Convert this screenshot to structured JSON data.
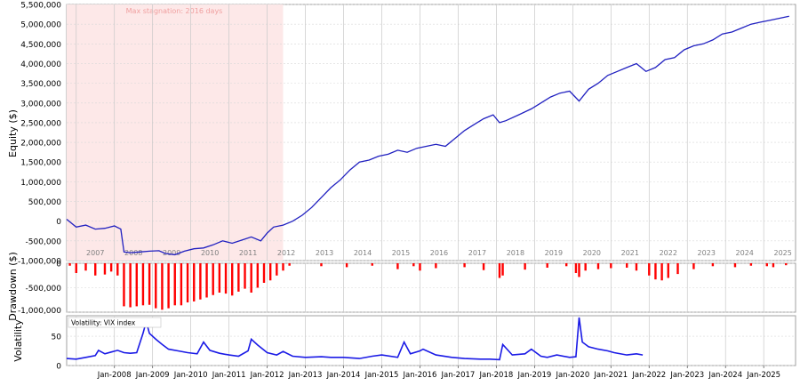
{
  "chart_data": [
    {
      "type": "line",
      "ylabel": "Equity ($)",
      "ylim": [
        -1000000,
        5500000
      ],
      "y_ticks": [
        "5,500,000",
        "5,000,000",
        "4,500,000",
        "4,000,000",
        "3,500,000",
        "3,000,000",
        "2,500,000",
        "2,000,000",
        "1,500,000",
        "1,000,000",
        "500,000",
        "0",
        "-500,000",
        "-1,000,000"
      ],
      "y_tick_values": [
        5500000,
        5000000,
        4500000,
        4000000,
        3500000,
        3000000,
        2500000,
        2000000,
        1500000,
        1000000,
        500000,
        0,
        -500000,
        -1000000
      ],
      "year_labels": [
        "2007",
        "2008",
        "2009",
        "2010",
        "2011",
        "2012",
        "2013",
        "2014",
        "2015",
        "2016",
        "2017",
        "2018",
        "2019",
        "2020",
        "2021",
        "2022",
        "2023",
        "2024",
        "2025"
      ],
      "annotation": "Max stagnation: 2016 days",
      "stagnation_span": [
        "2006-10",
        "2012-06"
      ],
      "grid": true,
      "line_color": "#2020c0",
      "shade_color": "#fde8e8",
      "x": [
        "2006-10",
        "2007-01",
        "2007-04",
        "2007-07",
        "2007-10",
        "2008-01",
        "2008-03",
        "2008-04",
        "2008-06",
        "2008-09",
        "2008-12",
        "2009-03",
        "2009-05",
        "2009-08",
        "2009-11",
        "2010-02",
        "2010-05",
        "2010-08",
        "2010-11",
        "2011-02",
        "2011-05",
        "2011-08",
        "2011-11",
        "2012-01",
        "2012-03",
        "2012-06",
        "2012-09",
        "2012-12",
        "2013-03",
        "2013-06",
        "2013-09",
        "2013-12",
        "2014-03",
        "2014-06",
        "2014-09",
        "2014-12",
        "2015-03",
        "2015-06",
        "2015-09",
        "2015-12",
        "2016-03",
        "2016-06",
        "2016-09",
        "2016-12",
        "2017-03",
        "2017-06",
        "2017-09",
        "2017-12",
        "2018-02",
        "2018-04",
        "2018-08",
        "2018-12",
        "2019-03",
        "2019-06",
        "2019-09",
        "2019-12",
        "2020-03",
        "2020-06",
        "2020-09",
        "2020-12",
        "2021-03",
        "2021-06",
        "2021-09",
        "2021-12",
        "2022-03",
        "2022-06",
        "2022-09",
        "2022-12",
        "2023-03",
        "2023-06",
        "2023-09",
        "2023-12",
        "2024-03",
        "2024-06",
        "2024-09",
        "2024-12",
        "2025-03",
        "2025-06",
        "2025-09"
      ],
      "values": [
        50000,
        -150000,
        -100000,
        -200000,
        -180000,
        -120000,
        -200000,
        -780000,
        -800000,
        -780000,
        -760000,
        -750000,
        -820000,
        -850000,
        -760000,
        -700000,
        -680000,
        -600000,
        -500000,
        -560000,
        -480000,
        -400000,
        -500000,
        -300000,
        -150000,
        -100000,
        0,
        150000,
        350000,
        600000,
        850000,
        1050000,
        1300000,
        1500000,
        1550000,
        1650000,
        1700000,
        1800000,
        1750000,
        1850000,
        1900000,
        1950000,
        1900000,
        2100000,
        2300000,
        2450000,
        2600000,
        2700000,
        2500000,
        2550000,
        2700000,
        2850000,
        3000000,
        3150000,
        3250000,
        3300000,
        3050000,
        3350000,
        3500000,
        3700000,
        3800000,
        3900000,
        4000000,
        3800000,
        3900000,
        4100000,
        4150000,
        4350000,
        4450000,
        4500000,
        4600000,
        4750000,
        4800000,
        4900000,
        5000000,
        5050000,
        5100000,
        5150000,
        5200000
      ]
    },
    {
      "type": "bar",
      "ylabel": "Drawdown ($)",
      "ylim": [
        -1000000,
        0
      ],
      "y_ticks": [
        "0",
        "-500,000",
        "-1,000,000"
      ],
      "y_tick_values": [
        0,
        -500000,
        -1000000
      ],
      "bar_color": "#ff0000",
      "x": [
        "2006-11",
        "2007-01",
        "2007-04",
        "2007-07",
        "2007-10",
        "2007-12",
        "2008-02",
        "2008-04",
        "2008-06",
        "2008-08",
        "2008-10",
        "2008-12",
        "2009-02",
        "2009-04",
        "2009-06",
        "2009-08",
        "2009-10",
        "2009-12",
        "2010-02",
        "2010-04",
        "2010-06",
        "2010-08",
        "2010-10",
        "2010-12",
        "2011-02",
        "2011-04",
        "2011-06",
        "2011-08",
        "2011-10",
        "2011-12",
        "2012-02",
        "2012-04",
        "2012-06",
        "2012-08",
        "2013-06",
        "2014-02",
        "2014-10",
        "2015-06",
        "2015-11",
        "2016-01",
        "2016-06",
        "2017-03",
        "2017-09",
        "2018-02",
        "2018-03",
        "2018-10",
        "2019-05",
        "2019-11",
        "2020-02",
        "2020-03",
        "2020-05",
        "2020-09",
        "2021-01",
        "2021-06",
        "2021-09",
        "2022-01",
        "2022-03",
        "2022-05",
        "2022-07",
        "2022-10",
        "2023-03",
        "2023-09",
        "2024-04",
        "2024-09",
        "2025-02",
        "2025-04",
        "2025-08"
      ],
      "values": [
        -50000,
        -200000,
        -150000,
        -250000,
        -230000,
        -170000,
        -250000,
        -880000,
        -900000,
        -880000,
        -860000,
        -850000,
        -920000,
        -950000,
        -920000,
        -860000,
        -860000,
        -800000,
        -780000,
        -740000,
        -700000,
        -650000,
        -600000,
        -620000,
        -660000,
        -580000,
        -520000,
        -600000,
        -500000,
        -400000,
        -350000,
        -250000,
        -150000,
        -50000,
        -60000,
        -80000,
        -50000,
        -120000,
        -60000,
        -150000,
        -100000,
        -80000,
        -140000,
        -300000,
        -250000,
        -130000,
        -90000,
        -60000,
        -200000,
        -280000,
        -150000,
        -120000,
        -100000,
        -90000,
        -150000,
        -250000,
        -330000,
        -350000,
        -300000,
        -220000,
        -120000,
        -60000,
        -80000,
        -50000,
        -60000,
        -80000,
        -40000
      ]
    },
    {
      "type": "line",
      "ylabel": "Volatility",
      "legend": "Volatility: VIX index",
      "ylim": [
        0,
        85
      ],
      "y_ticks": [
        "50",
        "0"
      ],
      "y_tick_values": [
        50,
        0
      ],
      "line_color": "#1a1ae6",
      "x_tick_labels": [
        "Jan-2008",
        "Jan-2009",
        "Jan-2010",
        "Jan-2011",
        "Jan-2012",
        "Jan-2013",
        "Jan-2014",
        "Jan-2015",
        "Jan-2016",
        "Jan-2017",
        "Jan-2018",
        "Jan-2019",
        "Jan-2020",
        "Jan-2021",
        "Jan-2022",
        "Jan-2023",
        "Jan-2024",
        "Jan-2025"
      ],
      "x": [
        "2006-10",
        "2007-01",
        "2007-04",
        "2007-07",
        "2007-08",
        "2007-10",
        "2007-12",
        "2008-02",
        "2008-04",
        "2008-06",
        "2008-08",
        "2008-10",
        "2008-11",
        "2008-12",
        "2009-02",
        "2009-04",
        "2009-06",
        "2009-09",
        "2009-12",
        "2010-03",
        "2010-05",
        "2010-07",
        "2010-10",
        "2011-01",
        "2011-04",
        "2011-07",
        "2011-08",
        "2011-10",
        "2012-01",
        "2012-04",
        "2012-06",
        "2012-09",
        "2013-01",
        "2013-06",
        "2013-09",
        "2014-01",
        "2014-06",
        "2014-10",
        "2015-01",
        "2015-06",
        "2015-08",
        "2015-10",
        "2016-01",
        "2016-02",
        "2016-06",
        "2016-11",
        "2017-03",
        "2017-08",
        "2017-11",
        "2018-02",
        "2018-03",
        "2018-06",
        "2018-10",
        "2018-12",
        "2019-03",
        "2019-05",
        "2019-08",
        "2019-12",
        "2020-02",
        "2020-03",
        "2020-04",
        "2020-06",
        "2020-09",
        "2020-12",
        "2021-02",
        "2021-06",
        "2021-09",
        "2021-11"
      ],
      "values": [
        12,
        11,
        14,
        17,
        26,
        20,
        23,
        26,
        22,
        21,
        22,
        55,
        75,
        55,
        45,
        36,
        28,
        25,
        22,
        20,
        40,
        26,
        21,
        18,
        16,
        25,
        45,
        35,
        22,
        18,
        24,
        16,
        14,
        15,
        14,
        14,
        12,
        16,
        18,
        14,
        40,
        20,
        25,
        28,
        18,
        14,
        12,
        11,
        11,
        10,
        36,
        18,
        20,
        28,
        16,
        14,
        18,
        14,
        15,
        82,
        40,
        32,
        28,
        25,
        22,
        18,
        20,
        18
      ]
    }
  ]
}
